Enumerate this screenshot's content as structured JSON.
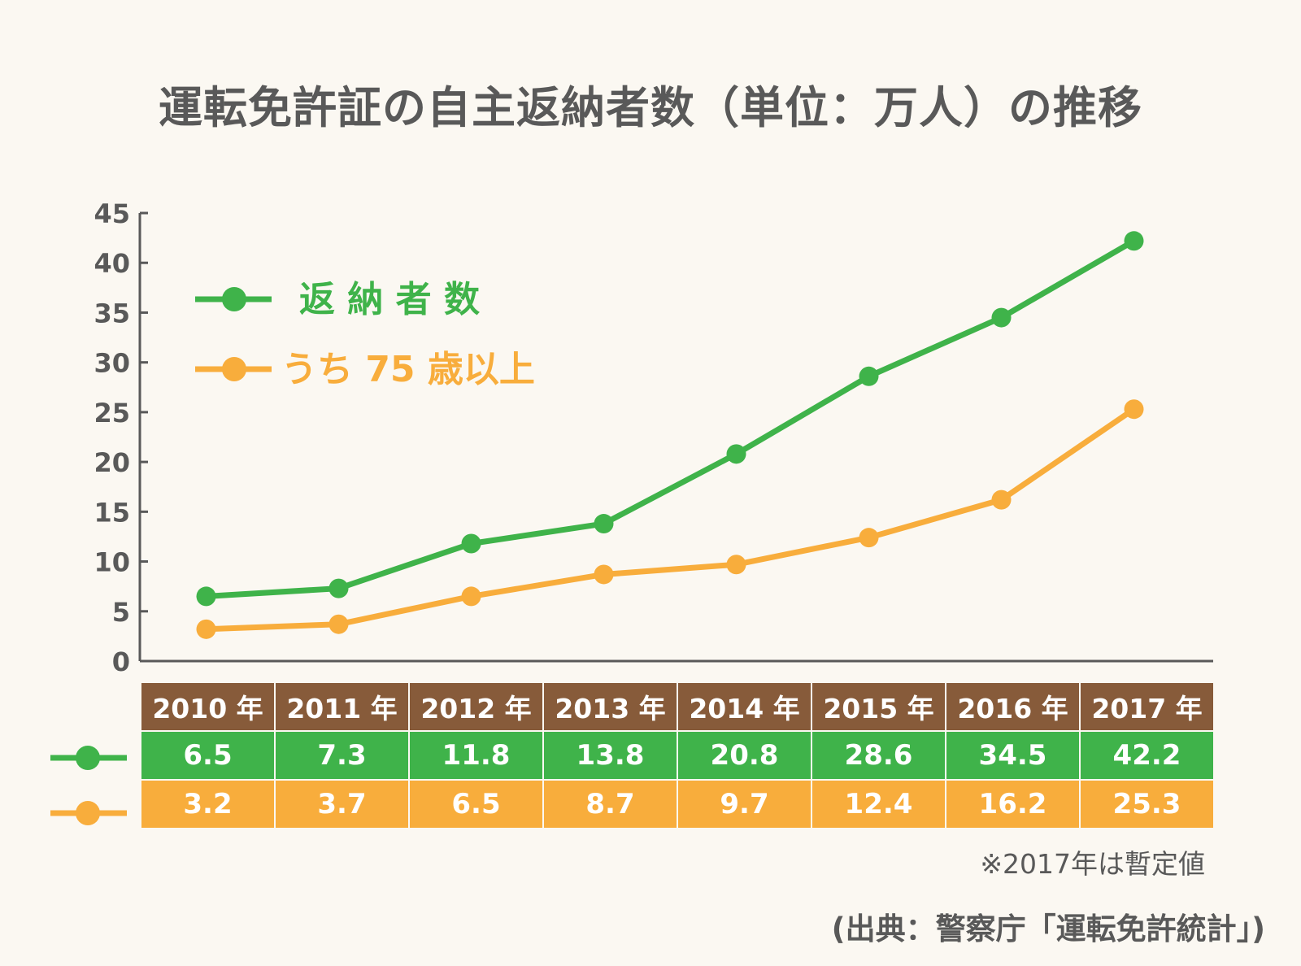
{
  "title": "運転免許証の自主返納者数（単位：万人）の推移",
  "note": "※2017年は暫定値",
  "source": "(出典：警察庁「運転免許統計」)",
  "colors": {
    "total": "#3fb34a",
    "over75": "#f8ad3c",
    "axis": "#595959",
    "header": "#875b3a"
  },
  "chart_data": {
    "type": "line",
    "categories": [
      "2010 年",
      "2011 年",
      "2012 年",
      "2013 年",
      "2014 年",
      "2015 年",
      "2016 年",
      "2017 年"
    ],
    "series": [
      {
        "name": "返 納 者 数",
        "values": [
          6.5,
          7.3,
          11.8,
          13.8,
          20.8,
          28.6,
          34.5,
          42.2
        ]
      },
      {
        "name": "うち 75 歳以上",
        "values": [
          3.2,
          3.7,
          6.5,
          8.7,
          9.7,
          12.4,
          16.2,
          25.3
        ]
      }
    ],
    "value_labels": [
      [
        "6.5",
        "7.3",
        "11.8",
        "13.8",
        "20.8",
        "28.6",
        "34.5",
        "42.2"
      ],
      [
        "3.2",
        "3.7",
        "6.5",
        "8.7",
        "9.7",
        "12.4",
        "16.2",
        "25.3"
      ]
    ],
    "ylim": [
      0,
      45
    ],
    "yticks": [
      "0",
      "5",
      "10",
      "15",
      "20",
      "25",
      "30",
      "35",
      "40",
      "45"
    ],
    "legend_position": "top-left",
    "grid": false
  }
}
